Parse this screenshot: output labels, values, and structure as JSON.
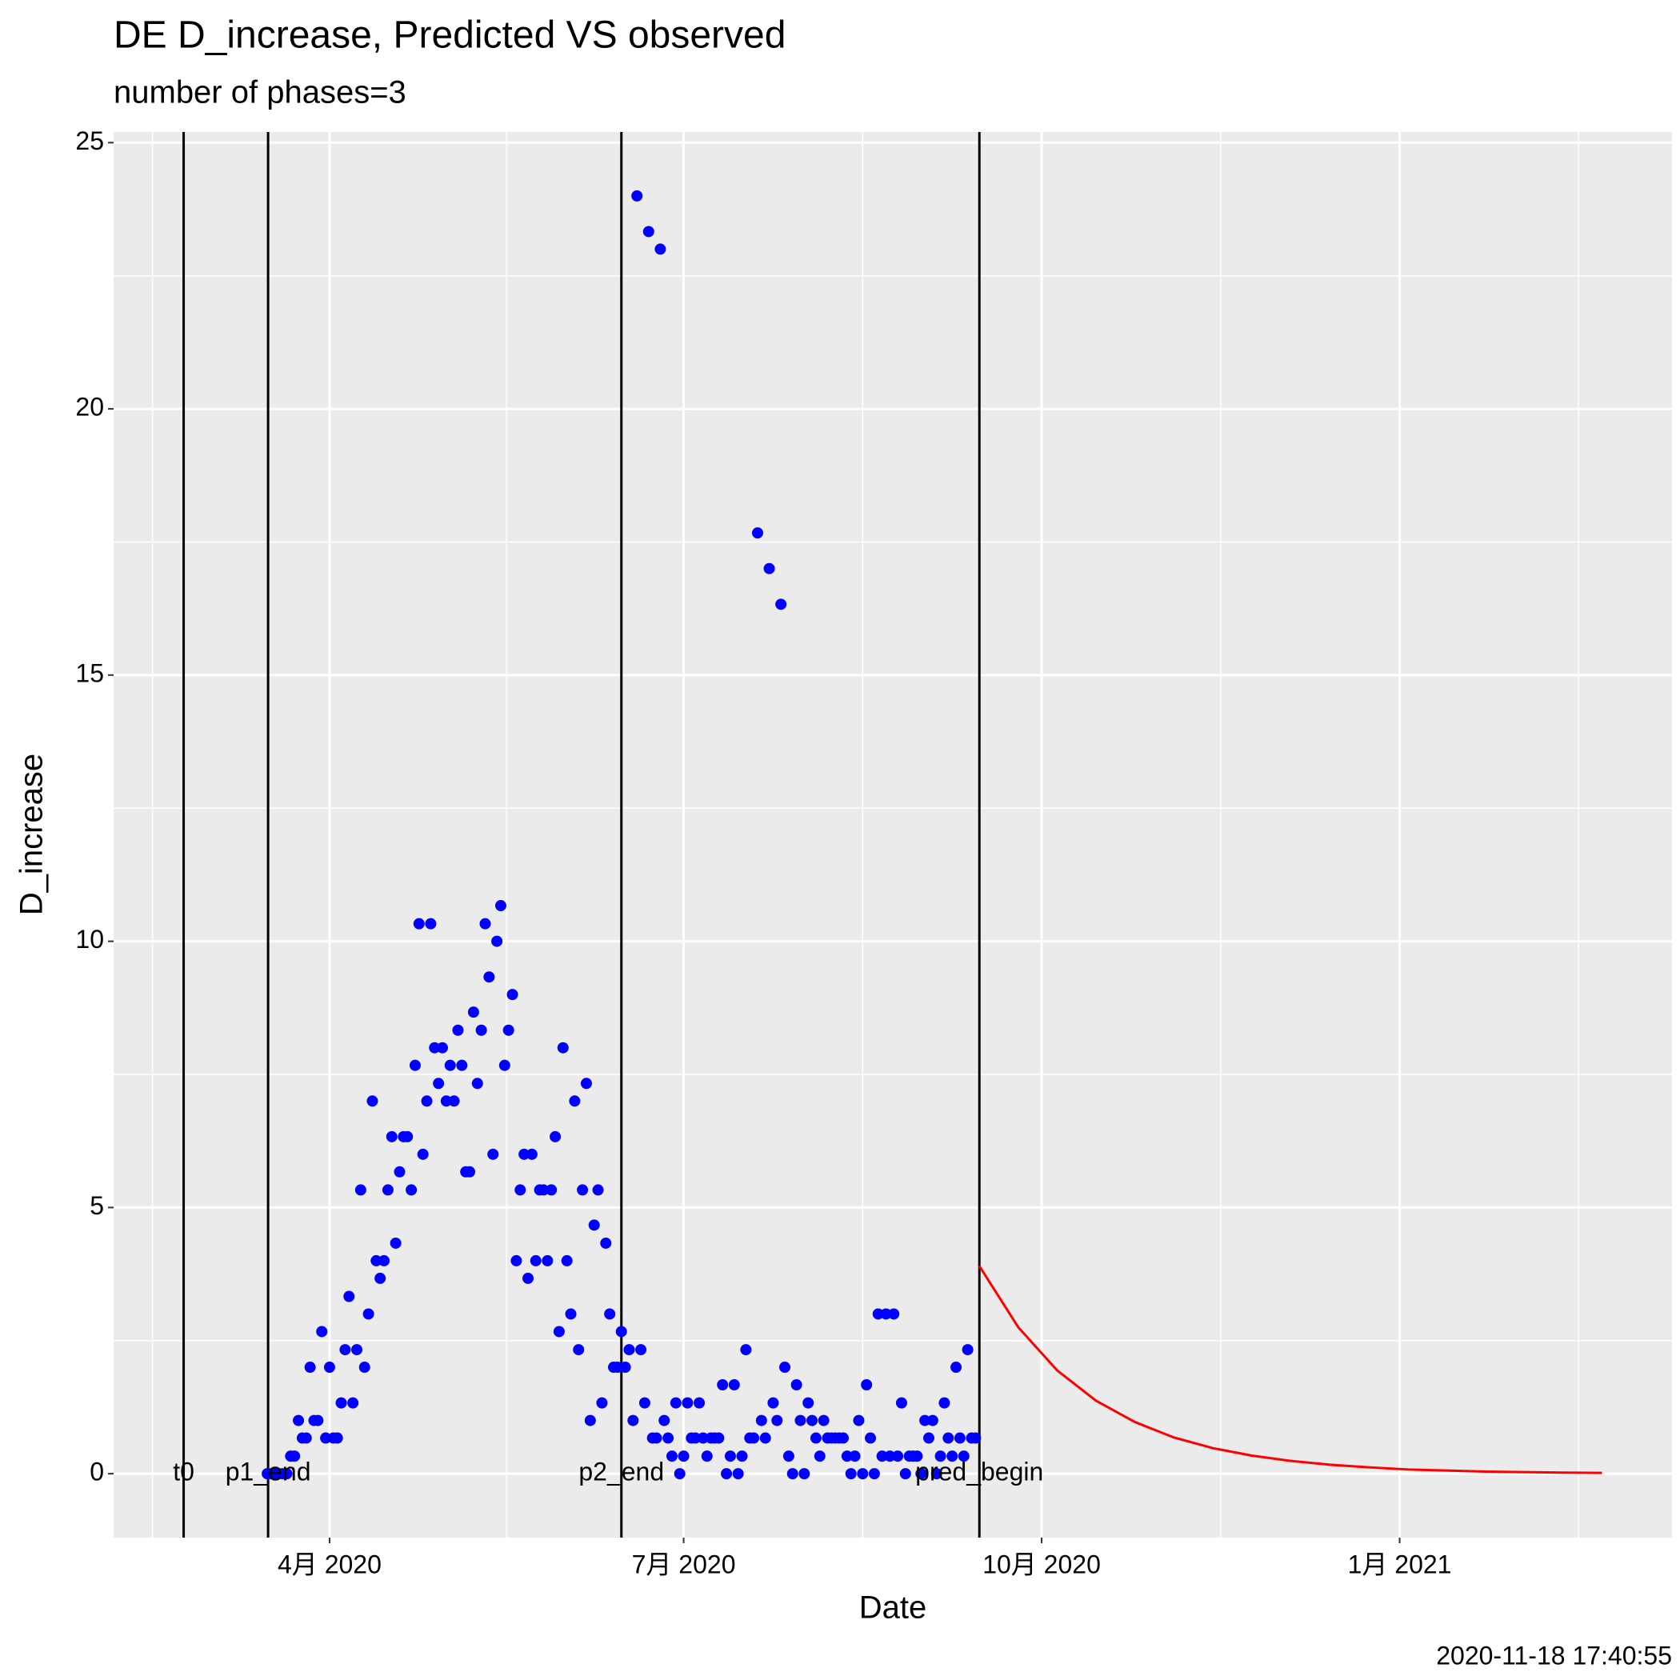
{
  "chart_data": {
    "type": "scatter",
    "title": "DE D_increase, Predicted VS observed",
    "subtitle": "number of phases=3",
    "x_label": "Date",
    "y_label": "D_increase",
    "caption": "2020-11-18 17:40:55",
    "xlim": [
      35.5,
      436
    ],
    "ylim": [
      -1.2,
      25.2
    ],
    "xticks": [
      {
        "value": 91,
        "label": "4月 2020"
      },
      {
        "value": 182,
        "label": "7月 2020"
      },
      {
        "value": 274,
        "label": "10月 2020"
      },
      {
        "value": 366,
        "label": "1月 2021"
      }
    ],
    "yticks": [
      0,
      5,
      10,
      15,
      20,
      25
    ],
    "grid": true,
    "vlines": [
      {
        "x": 53.5,
        "label": "t0"
      },
      {
        "x": 75.2,
        "label": "p1_end"
      },
      {
        "x": 166,
        "label": "p2_end"
      },
      {
        "x": 258,
        "label": "pred_begin"
      }
    ],
    "series": [
      {
        "type": "scatter",
        "color": "#0000ff",
        "x": [
          75,
          76,
          77,
          78,
          79,
          80,
          81,
          82,
          83,
          84,
          85,
          86,
          87,
          88,
          89,
          90,
          91,
          92,
          93,
          94,
          95,
          96,
          97,
          98,
          99,
          100,
          101,
          102,
          103,
          104,
          105,
          106,
          107,
          108,
          109,
          110,
          111,
          112,
          113,
          114,
          115,
          116,
          117,
          118,
          119,
          120,
          121,
          122,
          123,
          124,
          125,
          126,
          127,
          128,
          129,
          130,
          131,
          132,
          133,
          134,
          135,
          136,
          137,
          138,
          139,
          140,
          141,
          142,
          143,
          144,
          145,
          146,
          147,
          148,
          149,
          150,
          151,
          152,
          153,
          154,
          155,
          156,
          157,
          158,
          159,
          160,
          161,
          162,
          163,
          164,
          165,
          166,
          167,
          168,
          169,
          170,
          171,
          172,
          173,
          174,
          175,
          176,
          177,
          178,
          179,
          180,
          181,
          182,
          183,
          184,
          185,
          186,
          187,
          188,
          189,
          190,
          191,
          192,
          193,
          194,
          195,
          196,
          197,
          198,
          199,
          200,
          201,
          202,
          203,
          204,
          205,
          206,
          207,
          208,
          209,
          210,
          211,
          212,
          213,
          214,
          215,
          216,
          217,
          218,
          219,
          220,
          221,
          222,
          223,
          224,
          225,
          226,
          227,
          228,
          229,
          230,
          231,
          232,
          233,
          234,
          235,
          236,
          237,
          238,
          239,
          240,
          241,
          242,
          243,
          244,
          245,
          246,
          247,
          248,
          249,
          250,
          251,
          252,
          253,
          254,
          255,
          256,
          257
        ],
        "values": [
          0,
          0,
          0,
          0,
          0,
          0,
          0.33,
          0.33,
          1,
          0.67,
          0.67,
          2,
          1,
          1,
          2.67,
          0.67,
          2,
          0.67,
          0.67,
          1.33,
          2.33,
          3.33,
          1.33,
          2.33,
          5.33,
          2,
          3,
          7,
          4,
          3.67,
          4,
          5.33,
          6.33,
          4.33,
          5.67,
          6.33,
          6.33,
          5.33,
          7.67,
          10.33,
          6,
          7,
          10.33,
          8,
          7.33,
          8,
          7,
          7.67,
          7,
          8.33,
          7.67,
          5.67,
          5.67,
          8.67,
          7.33,
          8.33,
          10.33,
          9.33,
          6,
          10,
          10.67,
          7.67,
          8.33,
          9,
          4,
          5.33,
          6,
          3.67,
          6,
          4,
          5.33,
          5.33,
          4,
          5.33,
          6.33,
          2.67,
          8,
          4,
          3,
          7,
          2.33,
          5.33,
          7.33,
          1,
          4.67,
          5.33,
          1.33,
          4.33,
          3,
          2,
          2,
          2.67,
          2,
          2.33,
          1,
          24,
          2.33,
          1.33,
          23.33,
          0.67,
          0.67,
          23,
          1,
          0.67,
          0.33,
          1.33,
          0,
          0.33,
          1.33,
          0.67,
          0.67,
          1.33,
          0.67,
          0.33,
          0.67,
          0.67,
          0.67,
          1.67,
          0,
          0.33,
          1.67,
          0,
          0.33,
          2.33,
          0.67,
          0.67,
          17.67,
          1,
          0.67,
          17,
          1.33,
          1,
          16.33,
          2,
          0.33,
          0,
          1.67,
          1,
          0,
          1.33,
          1,
          0.67,
          0.33,
          1,
          0.67,
          0.67,
          0.67,
          0.67,
          0.67,
          0.33,
          0,
          0.33,
          1,
          0,
          1.67,
          0.67,
          0,
          3,
          0.33,
          3,
          0.33,
          3,
          0.33,
          1.33,
          0,
          0.33,
          0.33,
          0.33,
          0,
          1,
          0.67,
          1,
          0,
          0.33,
          1.33,
          0.67,
          0.33,
          2,
          0.67,
          0.33,
          2.33,
          0.67,
          0.67
        ]
      },
      {
        "type": "line",
        "color": "#ff0000",
        "x": [
          258,
          268,
          278,
          288,
          298,
          308,
          318,
          328,
          338,
          348,
          358,
          368,
          378,
          388,
          398,
          408,
          418
        ],
        "values": [
          3.9,
          2.75,
          1.94,
          1.37,
          0.97,
          0.68,
          0.48,
          0.34,
          0.24,
          0.17,
          0.12,
          0.08,
          0.06,
          0.04,
          0.03,
          0.02,
          0.015
        ]
      }
    ]
  }
}
